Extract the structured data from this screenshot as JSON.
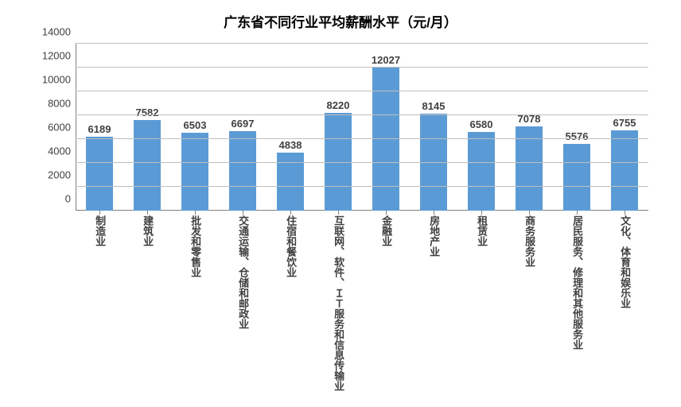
{
  "chart": {
    "type": "bar",
    "title": "广东省不同行业平均薪酬水平（元/月）",
    "title_fontsize": 17,
    "title_color": "#000000",
    "background_color": "#ffffff",
    "bar_color": "#5b9bd5",
    "grid_color": "#bfbfbf",
    "axis_color": "#808080",
    "text_color": "#404040",
    "label_fontsize": 13,
    "tick_fontsize": 13,
    "value_fontsize": 13,
    "ylim": [
      0,
      14000
    ],
    "ytick_step": 2000,
    "yticks": [
      0,
      2000,
      4000,
      6000,
      8000,
      10000,
      12000,
      14000
    ],
    "bar_width": 0.58,
    "categories": [
      "制造业",
      "建筑业",
      "批发和零售业",
      "交通运输、仓储和邮政业",
      "住宿和餐饮业",
      "互联网、软件、ＩＴ服务和信息传输业",
      "金融业",
      "房地产业",
      "租赁业",
      "商务服务业",
      "居民服务、修理和其他服务业",
      "文化、体育和娱乐业"
    ],
    "values": [
      6189,
      7582,
      6503,
      6697,
      4838,
      8220,
      12027,
      8145,
      6580,
      7078,
      5576,
      6755
    ]
  }
}
